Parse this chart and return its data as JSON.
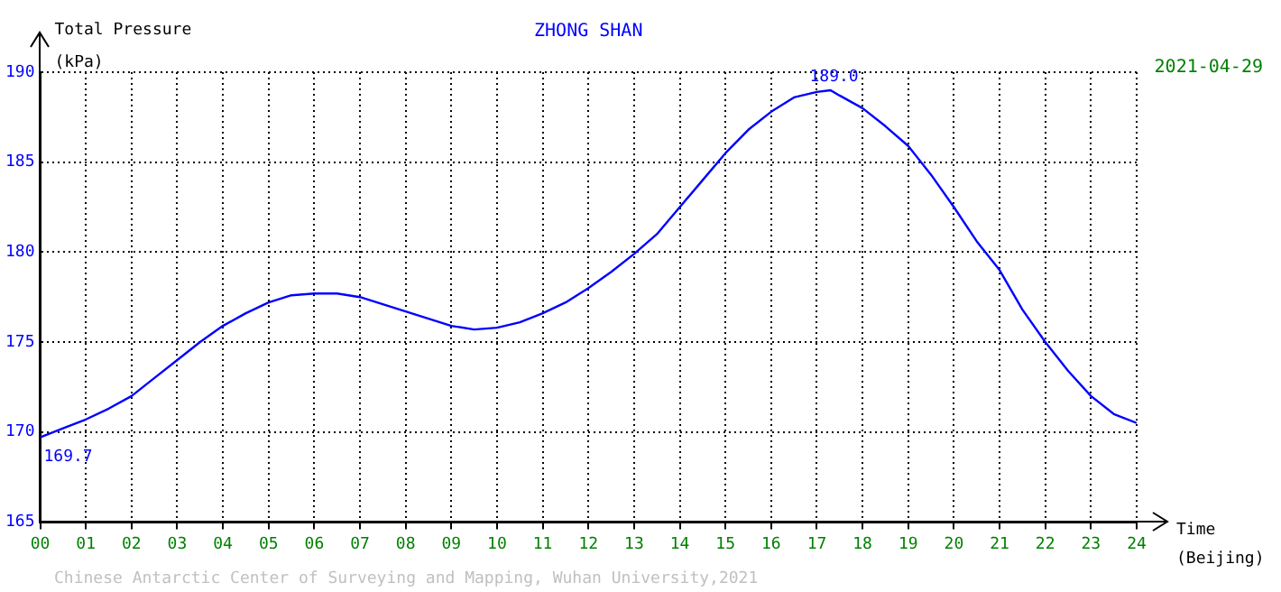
{
  "chart_data": {
    "type": "line",
    "title": "ZHONG SHAN",
    "subtitle": "2021-04-29",
    "ylabel": "Total Pressure\n(kPa)",
    "xlabel": "Time\n(Beijing)",
    "x": [
      0,
      0.5,
      1,
      1.5,
      2,
      2.5,
      3,
      3.5,
      4,
      4.5,
      5,
      5.5,
      6,
      6.5,
      7,
      7.5,
      8,
      8.5,
      9,
      9.5,
      10,
      10.5,
      11,
      11.5,
      12,
      12.5,
      13,
      13.5,
      14,
      14.5,
      15,
      15.5,
      16,
      16.5,
      17,
      17.3,
      17.5,
      18,
      18.5,
      19,
      19.5,
      20,
      20.5,
      21,
      21.5,
      22,
      22.5,
      23,
      23.5,
      24
    ],
    "series": [
      {
        "color": "#0000ff",
        "values": [
          169.7,
          170.2,
          170.7,
          171.3,
          172.0,
          173.0,
          174.0,
          175.0,
          175.9,
          176.6,
          177.2,
          177.6,
          177.7,
          177.7,
          177.5,
          177.1,
          176.7,
          176.3,
          175.9,
          175.7,
          175.8,
          176.1,
          176.6,
          177.2,
          178.0,
          178.9,
          179.9,
          181.0,
          182.5,
          184.0,
          185.5,
          186.8,
          187.8,
          188.6,
          188.9,
          189.0,
          188.7,
          188.0,
          187.0,
          185.9,
          184.3,
          182.5,
          180.6,
          179.0,
          176.8,
          175.0,
          173.4,
          172.0,
          171.0,
          170.5
        ]
      }
    ],
    "xlim": [
      0,
      24
    ],
    "xticks": [
      {
        "value": 0,
        "label": "00"
      },
      {
        "value": 1,
        "label": "01"
      },
      {
        "value": 2,
        "label": "02"
      },
      {
        "value": 3,
        "label": "03"
      },
      {
        "value": 4,
        "label": "04"
      },
      {
        "value": 5,
        "label": "05"
      },
      {
        "value": 6,
        "label": "06"
      },
      {
        "value": 7,
        "label": "07"
      },
      {
        "value": 8,
        "label": "08"
      },
      {
        "value": 9,
        "label": "09"
      },
      10,
      11,
      12,
      13,
      14,
      15,
      16,
      17,
      18,
      19,
      20,
      21,
      22,
      23,
      24
    ],
    "ylim": [
      165,
      190
    ],
    "yticks": [
      165,
      170,
      175,
      180,
      185,
      190
    ],
    "grid": true,
    "legend": false,
    "line_style": "solid",
    "annotations": [
      {
        "text": "189.0",
        "x": 17,
        "y": 189.0
      },
      {
        "text": "169.7",
        "x": 0,
        "y": 169.7
      },
      "Chinese Antarctic Center of Surveying and Mapping, Wuhan University,2021"
    ]
  }
}
